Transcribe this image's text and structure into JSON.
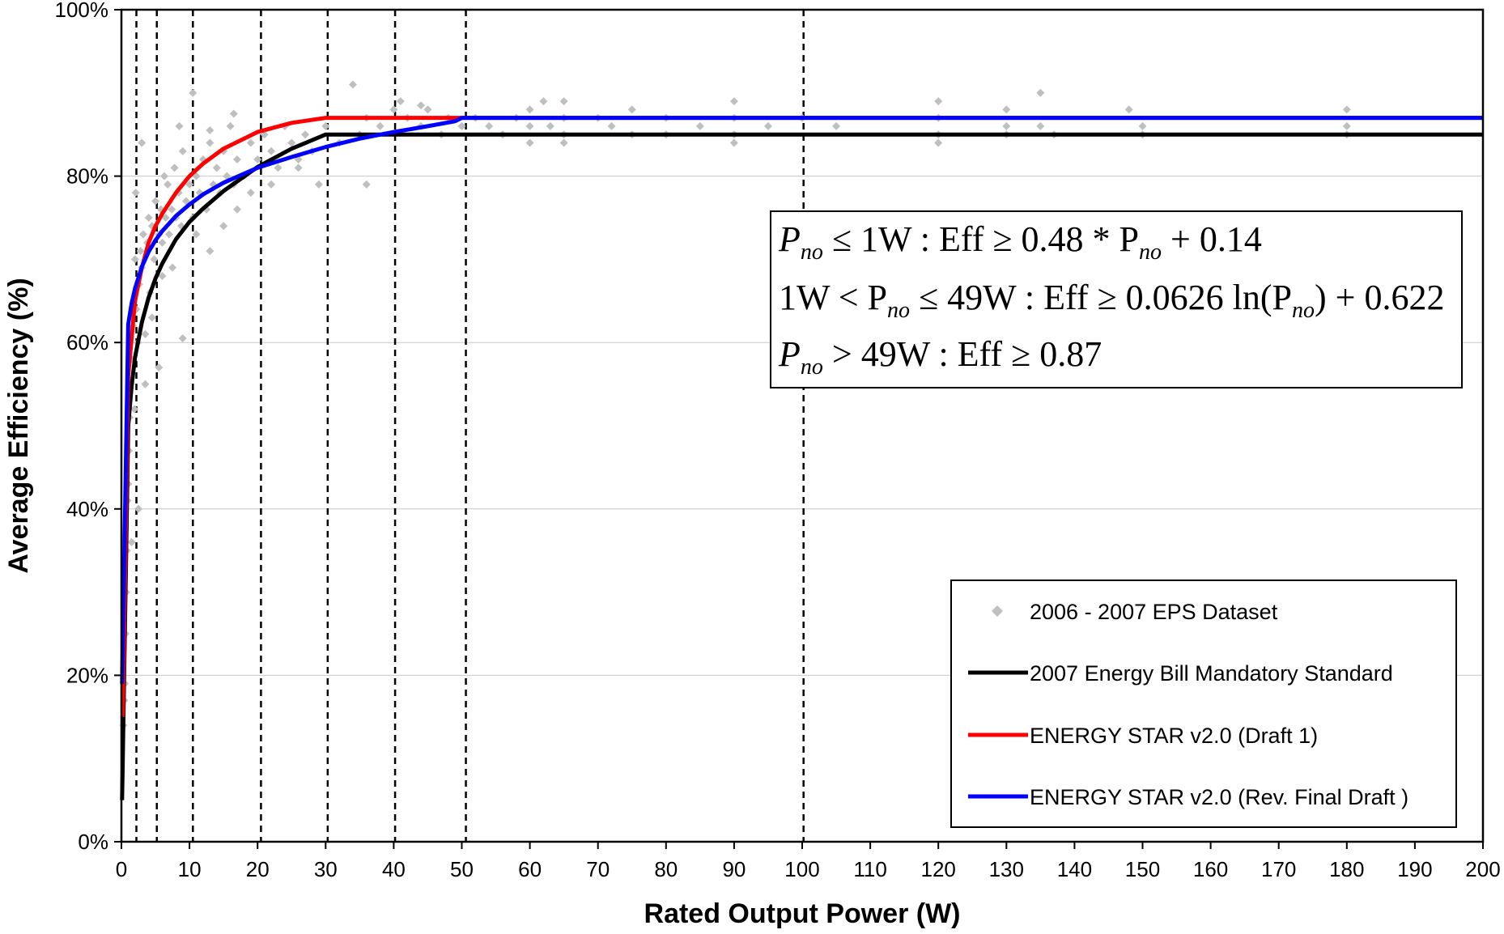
{
  "chart_data": {
    "type": "scatter",
    "xlabel": "Rated Output Power (W)",
    "ylabel": "Average Efficiency (%)",
    "xlim": [
      0,
      200
    ],
    "ylim": [
      0,
      100
    ],
    "x_ticks": [
      "0",
      "10",
      "20",
      "30",
      "40",
      "50",
      "60",
      "70",
      "80",
      "90",
      "100",
      "110",
      "120",
      "130",
      "140",
      "150",
      "160",
      "170",
      "180",
      "190",
      "200"
    ],
    "y_ticks": [
      "0%",
      "20%",
      "40%",
      "60%",
      "80%",
      "100%"
    ],
    "grid": "horizontal",
    "reference_lines_x": [
      2.2,
      5.2,
      10.5,
      20.5,
      30.3,
      40.2,
      50.6,
      100.2
    ],
    "legend_position": "bottom-right",
    "legend": [
      {
        "label": "2006 - 2007 EPS Dataset",
        "color": "#bfbfbf",
        "marker": "diamond"
      },
      {
        "label": "2007 Energy Bill Mandatory Standard",
        "color": "#000000",
        "marker": "line"
      },
      {
        "label": "ENERGY STAR v2.0 (Draft 1)",
        "color": "#ff0000",
        "marker": "line"
      },
      {
        "label": "ENERGY STAR v2.0 (Rev. Final Draft )",
        "color": "#0000ff",
        "marker": "line"
      }
    ],
    "series": [
      {
        "name": "2006 - 2007 EPS Dataset",
        "kind": "scatter",
        "color": "#bfbfbf",
        "points": [
          [
            0.3,
            14
          ],
          [
            0.4,
            17
          ],
          [
            0.5,
            19
          ],
          [
            0.6,
            25
          ],
          [
            0.7,
            30
          ],
          [
            0.8,
            35
          ],
          [
            0.9,
            41
          ],
          [
            1.0,
            43
          ],
          [
            1.1,
            47
          ],
          [
            1.2,
            51
          ],
          [
            1.3,
            55
          ],
          [
            1.5,
            58
          ],
          [
            1.7,
            62
          ],
          [
            1.8,
            65
          ],
          [
            2.0,
            70
          ],
          [
            2.2,
            64
          ],
          [
            2.4,
            60
          ],
          [
            2.6,
            67
          ],
          [
            2.8,
            71
          ],
          [
            3.0,
            69
          ],
          [
            3.2,
            73
          ],
          [
            3.5,
            61
          ],
          [
            3.8,
            72
          ],
          [
            4.0,
            75
          ],
          [
            4.2,
            66
          ],
          [
            4.5,
            74
          ],
          [
            4.8,
            70
          ],
          [
            5.0,
            77
          ],
          [
            5.5,
            73
          ],
          [
            5.8,
            76
          ],
          [
            6.0,
            72
          ],
          [
            6.3,
            80
          ],
          [
            6.5,
            75
          ],
          [
            6.8,
            79
          ],
          [
            7.0,
            73
          ],
          [
            7.4,
            76
          ],
          [
            7.8,
            81
          ],
          [
            8.0,
            75
          ],
          [
            8.4,
            78
          ],
          [
            8.8,
            74
          ],
          [
            9.0,
            83
          ],
          [
            9.5,
            77
          ],
          [
            10.0,
            79
          ],
          [
            10.5,
            75
          ],
          [
            11.0,
            80
          ],
          [
            11.5,
            78
          ],
          [
            12.0,
            82
          ],
          [
            12.5,
            76
          ],
          [
            13.0,
            84
          ],
          [
            13.5,
            79
          ],
          [
            14.0,
            81
          ],
          [
            14.5,
            78
          ],
          [
            15.0,
            83
          ],
          [
            15.5,
            80
          ],
          [
            16.0,
            86
          ],
          [
            16.5,
            79
          ],
          [
            17.0,
            82
          ],
          [
            18.0,
            80
          ],
          [
            19.0,
            84
          ],
          [
            20.0,
            82
          ],
          [
            21.0,
            85
          ],
          [
            22.0,
            83
          ],
          [
            23.0,
            81
          ],
          [
            24.0,
            86
          ],
          [
            25.0,
            84
          ],
          [
            26.0,
            82
          ],
          [
            27.0,
            85
          ],
          [
            28.0,
            83
          ],
          [
            30.0,
            86
          ],
          [
            32.0,
            84
          ],
          [
            34.0,
            91
          ],
          [
            35.0,
            85
          ],
          [
            36.0,
            87
          ],
          [
            38.0,
            86
          ],
          [
            40.0,
            88
          ],
          [
            42.0,
            87
          ],
          [
            44.0,
            86
          ],
          [
            45.0,
            88
          ],
          [
            47.0,
            85
          ],
          [
            48.0,
            87
          ],
          [
            50.0,
            86
          ],
          [
            52.0,
            87
          ],
          [
            54.0,
            86
          ],
          [
            56.0,
            85
          ],
          [
            58.0,
            87
          ],
          [
            60.0,
            88
          ],
          [
            60.0,
            86
          ],
          [
            60.0,
            84
          ],
          [
            62.0,
            89
          ],
          [
            63.0,
            86
          ],
          [
            65.0,
            89
          ],
          [
            65.0,
            87
          ],
          [
            65.0,
            85
          ],
          [
            65.0,
            84
          ],
          [
            70.0,
            87
          ],
          [
            72.0,
            86
          ],
          [
            75.0,
            88
          ],
          [
            75.0,
            85
          ],
          [
            80.0,
            87
          ],
          [
            80.0,
            85
          ],
          [
            85.0,
            86
          ],
          [
            90.0,
            89
          ],
          [
            90.0,
            87
          ],
          [
            90.0,
            85
          ],
          [
            90.0,
            84
          ],
          [
            95.0,
            86
          ],
          [
            100.0,
            87
          ],
          [
            105.0,
            86
          ],
          [
            120.0,
            89
          ],
          [
            120.0,
            87
          ],
          [
            120.0,
            85
          ],
          [
            120.0,
            84
          ],
          [
            130.0,
            88
          ],
          [
            130.0,
            86
          ],
          [
            130.0,
            85
          ],
          [
            135.0,
            90
          ],
          [
            135.0,
            86
          ],
          [
            137.0,
            85
          ],
          [
            148.0,
            88
          ],
          [
            150.0,
            86
          ],
          [
            150.0,
            85
          ],
          [
            180.0,
            88
          ],
          [
            180.0,
            86
          ],
          [
            180.0,
            85
          ],
          [
            1.5,
            36
          ],
          [
            1.9,
            52
          ],
          [
            2.5,
            40
          ],
          [
            3.5,
            55
          ],
          [
            5.5,
            57
          ],
          [
            9.0,
            60.5
          ],
          [
            3.0,
            84
          ],
          [
            8.5,
            86
          ],
          [
            10.5,
            90
          ],
          [
            13.0,
            85.5
          ],
          [
            16.5,
            87.5
          ],
          [
            11.0,
            73
          ],
          [
            13.0,
            71
          ],
          [
            15.0,
            74
          ],
          [
            17.0,
            76
          ],
          [
            19.0,
            78
          ],
          [
            22.0,
            79
          ],
          [
            26.0,
            81
          ],
          [
            29.0,
            79
          ],
          [
            36.0,
            79
          ],
          [
            44.0,
            88.5
          ],
          [
            41.0,
            89
          ],
          [
            6.0,
            68
          ],
          [
            7.5,
            69
          ],
          [
            4.5,
            63
          ],
          [
            2.1,
            78
          ]
        ]
      },
      {
        "name": "2007 Energy Bill Mandatory Standard",
        "kind": "line",
        "color": "#000000",
        "points": [
          [
            0.1,
            5
          ],
          [
            0.2,
            10
          ],
          [
            0.3,
            15
          ],
          [
            0.5,
            25
          ],
          [
            0.75,
            37.5
          ],
          [
            1.0,
            50
          ],
          [
            1.5,
            54.8
          ],
          [
            2,
            58.2
          ],
          [
            3,
            62.4
          ],
          [
            4,
            65.4
          ],
          [
            5,
            67.7
          ],
          [
            6,
            69.5
          ],
          [
            8,
            72.4
          ],
          [
            10,
            74.5
          ],
          [
            12,
            76.1
          ],
          [
            15,
            78.2
          ],
          [
            20,
            81.1
          ],
          [
            25,
            83.3
          ],
          [
            30,
            85.0
          ],
          [
            200,
            85.0
          ]
        ]
      },
      {
        "name": "ENERGY STAR v2.0 (Draft 1)",
        "kind": "line",
        "color": "#ff0000",
        "points": [
          [
            0.2,
            15
          ],
          [
            0.5,
            30
          ],
          [
            1.0,
            56
          ],
          [
            2,
            65
          ],
          [
            3,
            69
          ],
          [
            4,
            72
          ],
          [
            5,
            74
          ],
          [
            6,
            75.5
          ],
          [
            8,
            78
          ],
          [
            10,
            80
          ],
          [
            12,
            81.5
          ],
          [
            15,
            83.3
          ],
          [
            20,
            85.3
          ],
          [
            25,
            86.4
          ],
          [
            30,
            87.0
          ],
          [
            36,
            87.0
          ],
          [
            200,
            87.0
          ]
        ]
      },
      {
        "name": "ENERGY STAR v2.0 (Rev. Final Draft )",
        "kind": "line",
        "color": "#0000ff",
        "points": [
          [
            0.1,
            19
          ],
          [
            0.25,
            26
          ],
          [
            0.5,
            38
          ],
          [
            0.75,
            50
          ],
          [
            1.0,
            62.2
          ],
          [
            1.5,
            64.7
          ],
          [
            2,
            66.5
          ],
          [
            3,
            69.1
          ],
          [
            4,
            70.9
          ],
          [
            5,
            72.3
          ],
          [
            6,
            73.4
          ],
          [
            8,
            75.2
          ],
          [
            10,
            76.6
          ],
          [
            12,
            77.8
          ],
          [
            15,
            79.2
          ],
          [
            20,
            81.0
          ],
          [
            25,
            82.3
          ],
          [
            30,
            83.5
          ],
          [
            35,
            84.5
          ],
          [
            40,
            85.3
          ],
          [
            45,
            86.0
          ],
          [
            49,
            86.6
          ],
          [
            50,
            87.0
          ],
          [
            200,
            87.0
          ]
        ]
      }
    ],
    "annotation": {
      "line1": {
        "a": "P",
        "a_sub": "no",
        "b": " ≤ 1W : Eff ≥ 0.48 * P",
        "b_sub": "no",
        "c": " + 0.14"
      },
      "line2": {
        "a": "1W < P",
        "a_sub": "no",
        "b": " ≤ 49W : Eff ≥ 0.0626 ln(P",
        "b_sub": "no",
        "c": ") + 0.622"
      },
      "line3": {
        "a": "P",
        "a_sub": "no",
        "b": " > 49W : Eff ≥ 0.87"
      }
    }
  }
}
